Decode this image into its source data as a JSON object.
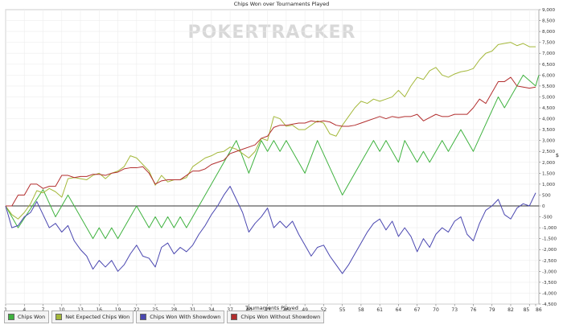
{
  "chart_data": {
    "type": "line",
    "title": "Chips Won over Tournaments Played",
    "watermark": "POKERTRACKER",
    "xlabel": "Tournaments Played",
    "ylabel": "$",
    "xlim": [
      1,
      86
    ],
    "ylim": [
      -4500,
      9000
    ],
    "x_ticks": [
      1,
      4,
      7,
      10,
      13,
      16,
      19,
      22,
      25,
      28,
      31,
      34,
      37,
      40,
      43,
      46,
      49,
      52,
      55,
      58,
      61,
      64,
      67,
      70,
      73,
      76,
      79,
      82,
      85,
      86
    ],
    "y_ticks": [
      -4500,
      -4000,
      -3500,
      -3000,
      -2500,
      -2000,
      -1500,
      -1000,
      -500,
      0,
      500,
      1000,
      1500,
      2000,
      2500,
      3000,
      3500,
      4000,
      4500,
      5000,
      5500,
      6000,
      6500,
      7000,
      7500,
      8000,
      8500,
      9000
    ],
    "y_tick_labels": [
      "-4,500",
      "-4,000",
      "-3,500",
      "-3,000",
      "-2,500",
      "-2,000",
      "-1,500",
      "-1,000",
      "-500",
      "0",
      "500",
      "1,000",
      "1,500",
      "2,000",
      "2,500",
      "3,000",
      "3,500",
      "4,000",
      "4,500",
      "5,000",
      "5,500",
      "6,000",
      "6,500",
      "7,000",
      "7,500",
      "8,000",
      "8,500",
      "9,000"
    ],
    "grid": true,
    "legend_position": "bottom-left",
    "series": [
      {
        "name": "Chips Won",
        "color": "#3fb23f",
        "points": [
          [
            1,
            0
          ],
          [
            3,
            -1000
          ],
          [
            7,
            750
          ],
          [
            9,
            -500
          ],
          [
            11,
            500
          ],
          [
            13,
            -500
          ],
          [
            15,
            -1500
          ],
          [
            16,
            -1000
          ],
          [
            17,
            -1500
          ],
          [
            18,
            -1000
          ],
          [
            19,
            -1500
          ],
          [
            22,
            0
          ],
          [
            24,
            -1000
          ],
          [
            25,
            -500
          ],
          [
            26,
            -1000
          ],
          [
            27,
            -500
          ],
          [
            28,
            -1000
          ],
          [
            29,
            -500
          ],
          [
            30,
            -1000
          ],
          [
            38,
            3000
          ],
          [
            40,
            1500
          ],
          [
            42,
            3000
          ],
          [
            43,
            2500
          ],
          [
            44,
            3000
          ],
          [
            45,
            2500
          ],
          [
            46,
            3000
          ],
          [
            49,
            1500
          ],
          [
            51,
            3000
          ],
          [
            55,
            500
          ],
          [
            60,
            3000
          ],
          [
            61,
            2500
          ],
          [
            62,
            3000
          ],
          [
            64,
            2000
          ],
          [
            65,
            3000
          ],
          [
            67,
            2000
          ],
          [
            68,
            2500
          ],
          [
            69,
            2000
          ],
          [
            71,
            3000
          ],
          [
            72,
            2500
          ],
          [
            74,
            3500
          ],
          [
            76,
            2500
          ],
          [
            80,
            5000
          ],
          [
            81,
            4500
          ],
          [
            84,
            6000
          ],
          [
            86,
            5500
          ],
          [
            86.5,
            6000
          ]
        ]
      },
      {
        "name": "Net Expected Chips Won",
        "color": "#a4b83a",
        "points": [
          [
            1,
            0
          ],
          [
            2,
            -400
          ],
          [
            3,
            -600
          ],
          [
            4,
            -300
          ],
          [
            5,
            100
          ],
          [
            6,
            700
          ],
          [
            7,
            600
          ],
          [
            8,
            800
          ],
          [
            9,
            650
          ],
          [
            10,
            400
          ],
          [
            11,
            1250
          ],
          [
            12,
            1300
          ],
          [
            13,
            1250
          ],
          [
            14,
            1200
          ],
          [
            15,
            1400
          ],
          [
            16,
            1500
          ],
          [
            17,
            1250
          ],
          [
            18,
            1500
          ],
          [
            19,
            1600
          ],
          [
            20,
            1800
          ],
          [
            21,
            2300
          ],
          [
            22,
            2200
          ],
          [
            23,
            1900
          ],
          [
            24,
            1600
          ],
          [
            25,
            950
          ],
          [
            26,
            1400
          ],
          [
            27,
            1100
          ],
          [
            28,
            1200
          ],
          [
            29,
            1200
          ],
          [
            30,
            1300
          ],
          [
            31,
            1800
          ],
          [
            32,
            2000
          ],
          [
            33,
            2200
          ],
          [
            34,
            2300
          ],
          [
            35,
            2450
          ],
          [
            36,
            2500
          ],
          [
            37,
            2700
          ],
          [
            38,
            2600
          ],
          [
            39,
            2400
          ],
          [
            40,
            2200
          ],
          [
            41,
            2500
          ],
          [
            42,
            3100
          ],
          [
            43,
            3000
          ],
          [
            44,
            4100
          ],
          [
            45,
            4000
          ],
          [
            46,
            3650
          ],
          [
            47,
            3700
          ],
          [
            48,
            3500
          ],
          [
            49,
            3500
          ],
          [
            50,
            3700
          ],
          [
            51,
            3900
          ],
          [
            52,
            3800
          ],
          [
            53,
            3300
          ],
          [
            54,
            3200
          ],
          [
            55,
            3700
          ],
          [
            56,
            4100
          ],
          [
            57,
            4500
          ],
          [
            58,
            4800
          ],
          [
            59,
            4700
          ],
          [
            60,
            4900
          ],
          [
            61,
            4800
          ],
          [
            62,
            4900
          ],
          [
            63,
            5000
          ],
          [
            64,
            5300
          ],
          [
            65,
            5000
          ],
          [
            66,
            5500
          ],
          [
            67,
            5900
          ],
          [
            68,
            5800
          ],
          [
            69,
            6200
          ],
          [
            70,
            6350
          ],
          [
            71,
            6000
          ],
          [
            72,
            5900
          ],
          [
            73,
            6050
          ],
          [
            74,
            6150
          ],
          [
            75,
            6200
          ],
          [
            76,
            6300
          ],
          [
            77,
            6700
          ],
          [
            78,
            7000
          ],
          [
            79,
            7100
          ],
          [
            80,
            7400
          ],
          [
            81,
            7450
          ],
          [
            82,
            7500
          ],
          [
            83,
            7350
          ],
          [
            84,
            7450
          ],
          [
            85,
            7300
          ],
          [
            86,
            7300
          ]
        ]
      },
      {
        "name": "Chips Won With Showdown",
        "color": "#4a47b0",
        "points": [
          [
            1,
            0
          ],
          [
            2,
            -1000
          ],
          [
            3,
            -900
          ],
          [
            4,
            -500
          ],
          [
            5,
            -300
          ],
          [
            6,
            200
          ],
          [
            7,
            -400
          ],
          [
            8,
            -1000
          ],
          [
            9,
            -800
          ],
          [
            10,
            -1200
          ],
          [
            11,
            -900
          ],
          [
            12,
            -1600
          ],
          [
            13,
            -2000
          ],
          [
            14,
            -2300
          ],
          [
            15,
            -2900
          ],
          [
            16,
            -2500
          ],
          [
            17,
            -2800
          ],
          [
            18,
            -2500
          ],
          [
            19,
            -3000
          ],
          [
            20,
            -2700
          ],
          [
            21,
            -2200
          ],
          [
            22,
            -1800
          ],
          [
            23,
            -2300
          ],
          [
            24,
            -2400
          ],
          [
            25,
            -2800
          ],
          [
            26,
            -1900
          ],
          [
            27,
            -1700
          ],
          [
            28,
            -2200
          ],
          [
            29,
            -1900
          ],
          [
            30,
            -2100
          ],
          [
            31,
            -1800
          ],
          [
            32,
            -1300
          ],
          [
            33,
            -900
          ],
          [
            34,
            -400
          ],
          [
            35,
            0
          ],
          [
            36,
            500
          ],
          [
            37,
            900
          ],
          [
            38,
            300
          ],
          [
            39,
            -300
          ],
          [
            40,
            -1200
          ],
          [
            41,
            -800
          ],
          [
            42,
            -500
          ],
          [
            43,
            -100
          ],
          [
            44,
            -1000
          ],
          [
            45,
            -700
          ],
          [
            46,
            -1000
          ],
          [
            47,
            -700
          ],
          [
            48,
            -1300
          ],
          [
            49,
            -1800
          ],
          [
            50,
            -2300
          ],
          [
            51,
            -1900
          ],
          [
            52,
            -1800
          ],
          [
            53,
            -2300
          ],
          [
            54,
            -2700
          ],
          [
            55,
            -3100
          ],
          [
            56,
            -2700
          ],
          [
            57,
            -2200
          ],
          [
            58,
            -1700
          ],
          [
            59,
            -1200
          ],
          [
            60,
            -800
          ],
          [
            61,
            -600
          ],
          [
            62,
            -1100
          ],
          [
            63,
            -700
          ],
          [
            64,
            -1400
          ],
          [
            65,
            -1000
          ],
          [
            66,
            -1400
          ],
          [
            67,
            -2100
          ],
          [
            68,
            -1500
          ],
          [
            69,
            -1900
          ],
          [
            70,
            -1300
          ],
          [
            71,
            -1000
          ],
          [
            72,
            -1200
          ],
          [
            73,
            -700
          ],
          [
            74,
            -500
          ],
          [
            75,
            -1300
          ],
          [
            76,
            -1600
          ],
          [
            77,
            -800
          ],
          [
            78,
            -200
          ],
          [
            79,
            0
          ],
          [
            80,
            300
          ],
          [
            81,
            -400
          ],
          [
            82,
            -600
          ],
          [
            83,
            -100
          ],
          [
            84,
            100
          ],
          [
            85,
            0
          ],
          [
            86,
            600
          ]
        ]
      },
      {
        "name": "Chips Won Without Showdown",
        "color": "#b22e2e",
        "points": [
          [
            1,
            0
          ],
          [
            2,
            0
          ],
          [
            3,
            500
          ],
          [
            4,
            500
          ],
          [
            5,
            1000
          ],
          [
            6,
            1000
          ],
          [
            7,
            800
          ],
          [
            8,
            900
          ],
          [
            9,
            900
          ],
          [
            10,
            1400
          ],
          [
            11,
            1400
          ],
          [
            12,
            1300
          ],
          [
            13,
            1350
          ],
          [
            14,
            1350
          ],
          [
            15,
            1450
          ],
          [
            16,
            1450
          ],
          [
            17,
            1400
          ],
          [
            18,
            1500
          ],
          [
            19,
            1550
          ],
          [
            20,
            1700
          ],
          [
            21,
            1750
          ],
          [
            22,
            1750
          ],
          [
            23,
            1800
          ],
          [
            24,
            1500
          ],
          [
            25,
            1000
          ],
          [
            26,
            1150
          ],
          [
            27,
            1200
          ],
          [
            28,
            1200
          ],
          [
            29,
            1200
          ],
          [
            30,
            1400
          ],
          [
            31,
            1600
          ],
          [
            32,
            1600
          ],
          [
            33,
            1700
          ],
          [
            34,
            1900
          ],
          [
            35,
            2000
          ],
          [
            36,
            2100
          ],
          [
            37,
            2400
          ],
          [
            38,
            2500
          ],
          [
            39,
            2600
          ],
          [
            40,
            2700
          ],
          [
            41,
            2800
          ],
          [
            42,
            3100
          ],
          [
            43,
            3200
          ],
          [
            44,
            3600
          ],
          [
            45,
            3700
          ],
          [
            46,
            3700
          ],
          [
            47,
            3750
          ],
          [
            48,
            3800
          ],
          [
            49,
            3800
          ],
          [
            50,
            3900
          ],
          [
            51,
            3850
          ],
          [
            52,
            3900
          ],
          [
            53,
            3850
          ],
          [
            54,
            3700
          ],
          [
            55,
            3650
          ],
          [
            56,
            3650
          ],
          [
            57,
            3700
          ],
          [
            58,
            3800
          ],
          [
            59,
            3900
          ],
          [
            60,
            4000
          ],
          [
            61,
            4100
          ],
          [
            62,
            4000
          ],
          [
            63,
            4100
          ],
          [
            64,
            4050
          ],
          [
            65,
            4100
          ],
          [
            66,
            4100
          ],
          [
            67,
            4200
          ],
          [
            68,
            3900
          ],
          [
            69,
            4050
          ],
          [
            70,
            4200
          ],
          [
            71,
            4100
          ],
          [
            72,
            4100
          ],
          [
            73,
            4200
          ],
          [
            74,
            4200
          ],
          [
            75,
            4200
          ],
          [
            76,
            4500
          ],
          [
            77,
            4900
          ],
          [
            78,
            4700
          ],
          [
            79,
            5200
          ],
          [
            80,
            5700
          ],
          [
            81,
            5700
          ],
          [
            82,
            5900
          ],
          [
            83,
            5500
          ],
          [
            84,
            5450
          ],
          [
            85,
            5400
          ],
          [
            86,
            5450
          ]
        ]
      }
    ]
  }
}
